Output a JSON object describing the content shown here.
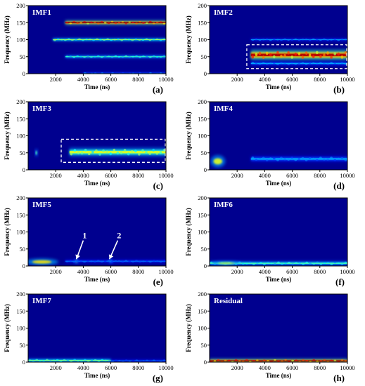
{
  "figure": {
    "x_axis_label": "Time (ns)",
    "y_axis_label": "Frequency (MHz)"
  },
  "chart_data": [
    {
      "type": "heatmap",
      "panel_letter": "(a)",
      "inset_label": "IMF1",
      "xlabel": "Time (ns)",
      "ylabel": "Frequency (MHz)",
      "xlim": [
        0,
        10000
      ],
      "ylim": [
        0,
        200
      ],
      "x_ticks": [
        2000,
        4000,
        6000,
        8000,
        10000
      ],
      "y_ticks": [
        0,
        50,
        100,
        150,
        200
      ],
      "features": [
        {
          "kind": "band",
          "x_start": 2700,
          "x_end": 10000,
          "y": 150,
          "height": 6,
          "intensity": 1.0
        },
        {
          "kind": "band",
          "x_start": 1800,
          "x_end": 10000,
          "y": 100,
          "height": 4,
          "intensity": 0.55
        },
        {
          "kind": "band",
          "x_start": 2700,
          "x_end": 10000,
          "y": 50,
          "height": 4,
          "intensity": 0.45
        },
        {
          "kind": "band",
          "x_start": 4000,
          "x_end": 10000,
          "y": 0,
          "height": 4,
          "intensity": 0.3
        }
      ],
      "annotations": []
    },
    {
      "type": "heatmap",
      "panel_letter": "(b)",
      "inset_label": "IMF2",
      "xlabel": "Time (ns)",
      "ylabel": "Frequency (MHz)",
      "xlim": [
        0,
        10000
      ],
      "ylim": [
        0,
        200
      ],
      "x_ticks": [
        2000,
        4000,
        6000,
        8000,
        10000
      ],
      "y_ticks": [
        0,
        50,
        100,
        150,
        200
      ],
      "features": [
        {
          "kind": "band",
          "x_start": 3000,
          "x_end": 10000,
          "y": 55,
          "height": 14,
          "intensity": 0.95
        },
        {
          "kind": "band",
          "x_start": 3000,
          "x_end": 10000,
          "y": 100,
          "height": 3,
          "intensity": 0.3
        },
        {
          "kind": "band",
          "x_start": 3000,
          "x_end": 10000,
          "y": 30,
          "height": 5,
          "intensity": 0.3
        }
      ],
      "annotations": [
        {
          "kind": "dashed-box",
          "x_range": [
            2700,
            10000
          ],
          "y_range": [
            15,
            85
          ]
        }
      ]
    },
    {
      "type": "heatmap",
      "panel_letter": "(c)",
      "inset_label": "IMF3",
      "xlabel": "Time (ns)",
      "ylabel": "Frequency (MHz)",
      "xlim": [
        0,
        10000
      ],
      "ylim": [
        0,
        200
      ],
      "x_ticks": [
        2000,
        4000,
        6000,
        8000,
        10000
      ],
      "y_ticks": [
        0,
        50,
        100,
        150,
        200
      ],
      "features": [
        {
          "kind": "band",
          "x_start": 3000,
          "x_end": 10000,
          "y": 52,
          "height": 12,
          "intensity": 0.6
        },
        {
          "kind": "blob",
          "x": 600,
          "y": 50,
          "w": 200,
          "h": 20,
          "intensity": 0.45
        }
      ],
      "annotations": [
        {
          "kind": "dashed-box",
          "x_range": [
            2400,
            10000
          ],
          "y_range": [
            22,
            90
          ]
        }
      ]
    },
    {
      "type": "heatmap",
      "panel_letter": "(d)",
      "inset_label": "IMF4",
      "xlabel": "Time (ns)",
      "ylabel": "Frequency (MHz)",
      "xlim": [
        0,
        10000
      ],
      "ylim": [
        0,
        200
      ],
      "x_ticks": [
        2000,
        4000,
        6000,
        8000,
        10000
      ],
      "y_ticks": [
        0,
        50,
        100,
        150,
        200
      ],
      "features": [
        {
          "kind": "blob",
          "x": 600,
          "y": 25,
          "w": 900,
          "h": 30,
          "intensity": 0.6
        },
        {
          "kind": "band",
          "x_start": 3000,
          "x_end": 10000,
          "y": 32,
          "height": 8,
          "intensity": 0.3
        }
      ],
      "annotations": []
    },
    {
      "type": "heatmap",
      "panel_letter": "(e)",
      "inset_label": "IMF5",
      "xlabel": "Time (ns)",
      "ylabel": "Frequency (MHz)",
      "xlim": [
        0,
        10000
      ],
      "ylim": [
        0,
        200
      ],
      "x_ticks": [
        2000,
        4000,
        6000,
        8000,
        10000
      ],
      "y_ticks": [
        0,
        50,
        100,
        150,
        200
      ],
      "features": [
        {
          "kind": "blob",
          "x": 1000,
          "y": 12,
          "w": 2000,
          "h": 16,
          "intensity": 0.65
        },
        {
          "kind": "blob",
          "x": 3500,
          "y": 14,
          "w": 300,
          "h": 12,
          "intensity": 0.5
        },
        {
          "kind": "blob",
          "x": 6000,
          "y": 14,
          "w": 300,
          "h": 12,
          "intensity": 0.4
        },
        {
          "kind": "band",
          "x_start": 2700,
          "x_end": 10000,
          "y": 14,
          "height": 4,
          "intensity": 0.25
        }
      ],
      "annotations": [
        {
          "kind": "arrow",
          "label": "1",
          "to": [
            3500,
            20
          ],
          "from": [
            4000,
            75
          ]
        },
        {
          "kind": "arrow",
          "label": "2",
          "to": [
            5900,
            20
          ],
          "from": [
            6500,
            75
          ]
        }
      ]
    },
    {
      "type": "heatmap",
      "panel_letter": "(f)",
      "inset_label": "IMF6",
      "xlabel": "Time (ns)",
      "ylabel": "Frequency (MHz)",
      "xlim": [
        0,
        10000
      ],
      "ylim": [
        0,
        200
      ],
      "x_ticks": [
        2000,
        4000,
        6000,
        8000,
        10000
      ],
      "y_ticks": [
        0,
        50,
        100,
        150,
        200
      ],
      "features": [
        {
          "kind": "band",
          "x_start": 0,
          "x_end": 10000,
          "y": 8,
          "height": 6,
          "intensity": 0.45
        },
        {
          "kind": "blob",
          "x": 1200,
          "y": 8,
          "w": 1800,
          "h": 10,
          "intensity": 0.55
        }
      ],
      "annotations": []
    },
    {
      "type": "heatmap",
      "panel_letter": "(g)",
      "inset_label": "IMF7",
      "xlabel": "Time (ns)",
      "ylabel": "Frequency (MHz)",
      "xlim": [
        0,
        10000
      ],
      "ylim": [
        0,
        200
      ],
      "x_ticks": [
        2000,
        4000,
        6000,
        8000,
        10000
      ],
      "y_ticks": [
        0,
        50,
        100,
        150,
        200
      ],
      "features": [
        {
          "kind": "band",
          "x_start": 0,
          "x_end": 6000,
          "y": 5,
          "height": 5,
          "intensity": 0.5
        },
        {
          "kind": "band",
          "x_start": 6000,
          "x_end": 10000,
          "y": 4,
          "height": 3,
          "intensity": 0.25
        }
      ],
      "annotations": []
    },
    {
      "type": "heatmap",
      "panel_letter": "(h)",
      "inset_label": "Residual",
      "xlabel": "Time (ns)",
      "ylabel": "Frequency (MHz)",
      "xlim": [
        0,
        10000
      ],
      "ylim": [
        0,
        200
      ],
      "x_ticks": [
        2000,
        4000,
        6000,
        8000,
        10000
      ],
      "y_ticks": [
        0,
        50,
        100,
        150,
        200
      ],
      "features": [
        {
          "kind": "band",
          "x_start": 0,
          "x_end": 10000,
          "y": 4,
          "height": 5,
          "intensity": 1.0
        }
      ],
      "annotations": []
    }
  ]
}
